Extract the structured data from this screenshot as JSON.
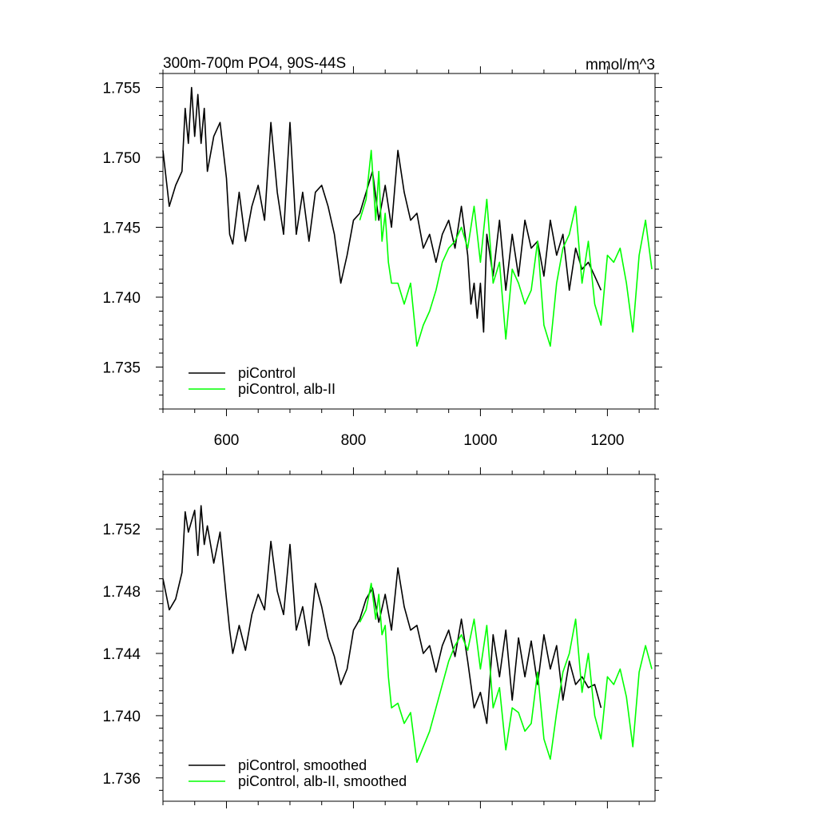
{
  "figure": {
    "left_title": "300m-700m PO4, 90S-44S",
    "right_title": "mmol/m^3"
  },
  "colors": {
    "piControl": "#000000",
    "alb_II": "#00ff00",
    "axis": "#000000"
  },
  "chart_data": [
    {
      "type": "line",
      "title": "300m-700m PO4, 90S-44S",
      "units": "mmol/m^3",
      "xlim": [
        500,
        1275
      ],
      "ylim": [
        1.732,
        1.756
      ],
      "xticks": [
        600,
        800,
        1000,
        1200
      ],
      "xtick_labels": [
        "600",
        "800",
        "1000",
        "1200"
      ],
      "yticks": [
        1.735,
        1.74,
        1.745,
        1.75,
        1.755
      ],
      "ytick_labels": [
        "1.735",
        "1.740",
        "1.745",
        "1.750",
        "1.755"
      ],
      "legend_position": "bottom-left",
      "series": [
        {
          "name": "piControl",
          "color": "#000000",
          "x": [
            500,
            510,
            520,
            530,
            535,
            540,
            545,
            550,
            555,
            560,
            565,
            570,
            580,
            590,
            600,
            605,
            610,
            620,
            630,
            640,
            650,
            660,
            670,
            680,
            690,
            700,
            710,
            720,
            730,
            740,
            750,
            760,
            770,
            780,
            790,
            800,
            810,
            820,
            830,
            840,
            850,
            860,
            870,
            880,
            890,
            900,
            910,
            920,
            930,
            940,
            950,
            960,
            970,
            980,
            985,
            990,
            995,
            1000,
            1005,
            1010,
            1020,
            1030,
            1040,
            1050,
            1060,
            1070,
            1080,
            1090,
            1100,
            1110,
            1120,
            1130,
            1140,
            1150,
            1160,
            1170,
            1180,
            1190
          ],
          "y": [
            1.7505,
            1.7465,
            1.748,
            1.749,
            1.7535,
            1.751,
            1.755,
            1.7515,
            1.7545,
            1.751,
            1.7535,
            1.749,
            1.7515,
            1.7525,
            1.7485,
            1.7445,
            1.7438,
            1.7475,
            1.744,
            1.7465,
            1.748,
            1.7455,
            1.7525,
            1.7475,
            1.7445,
            1.7525,
            1.7445,
            1.7475,
            1.744,
            1.7475,
            1.748,
            1.7465,
            1.7445,
            1.741,
            1.743,
            1.7455,
            1.746,
            1.7475,
            1.749,
            1.7455,
            1.748,
            1.745,
            1.7505,
            1.7475,
            1.7455,
            1.746,
            1.7435,
            1.7445,
            1.7425,
            1.7445,
            1.7455,
            1.7435,
            1.7465,
            1.743,
            1.7395,
            1.741,
            1.7385,
            1.741,
            1.7375,
            1.7445,
            1.7415,
            1.7455,
            1.7405,
            1.7445,
            1.7415,
            1.7455,
            1.7435,
            1.744,
            1.7415,
            1.7455,
            1.743,
            1.7445,
            1.7405,
            1.7435,
            1.742,
            1.7425,
            1.7415,
            1.7405
          ]
        },
        {
          "name": "piControl, alb-II",
          "color": "#00ff00",
          "x": [
            810,
            820,
            828,
            835,
            840,
            845,
            850,
            855,
            860,
            870,
            880,
            890,
            900,
            910,
            920,
            930,
            940,
            950,
            960,
            970,
            980,
            990,
            1000,
            1010,
            1020,
            1030,
            1040,
            1050,
            1060,
            1070,
            1080,
            1090,
            1100,
            1110,
            1120,
            1130,
            1140,
            1150,
            1160,
            1170,
            1180,
            1190,
            1200,
            1210,
            1220,
            1230,
            1240,
            1250,
            1260,
            1270
          ],
          "y": [
            1.7455,
            1.747,
            1.7505,
            1.7455,
            1.749,
            1.744,
            1.746,
            1.7425,
            1.741,
            1.741,
            1.7395,
            1.741,
            1.7365,
            1.738,
            1.739,
            1.7405,
            1.7425,
            1.7435,
            1.744,
            1.745,
            1.7435,
            1.7465,
            1.7425,
            1.747,
            1.741,
            1.7425,
            1.737,
            1.742,
            1.741,
            1.7395,
            1.7405,
            1.744,
            1.738,
            1.7365,
            1.741,
            1.7435,
            1.7445,
            1.7465,
            1.741,
            1.744,
            1.7395,
            1.738,
            1.743,
            1.7425,
            1.7435,
            1.741,
            1.7375,
            1.743,
            1.7455,
            1.742
          ]
        }
      ]
    },
    {
      "type": "line",
      "xlim": [
        500,
        1275
      ],
      "ylim": [
        1.7345,
        1.7555
      ],
      "xticks": [
        600,
        800,
        1000,
        1200
      ],
      "yticks": [
        1.736,
        1.74,
        1.744,
        1.748,
        1.752
      ],
      "ytick_labels": [
        "1.736",
        "1.740",
        "1.744",
        "1.748",
        "1.752"
      ],
      "legend_position": "bottom-left",
      "series": [
        {
          "name": "piControl, smoothed",
          "color": "#000000",
          "x": [
            500,
            510,
            520,
            530,
            535,
            540,
            550,
            555,
            560,
            565,
            570,
            580,
            590,
            600,
            605,
            610,
            620,
            630,
            640,
            650,
            660,
            670,
            680,
            690,
            700,
            710,
            720,
            730,
            740,
            750,
            760,
            770,
            780,
            790,
            800,
            810,
            820,
            830,
            840,
            850,
            860,
            870,
            880,
            890,
            900,
            910,
            920,
            930,
            940,
            950,
            960,
            970,
            980,
            990,
            1000,
            1010,
            1020,
            1030,
            1040,
            1050,
            1060,
            1070,
            1080,
            1090,
            1100,
            1110,
            1120,
            1130,
            1140,
            1150,
            1160,
            1170,
            1180,
            1190
          ],
          "y": [
            1.7488,
            1.7468,
            1.7475,
            1.7492,
            1.7531,
            1.7518,
            1.7532,
            1.7503,
            1.7535,
            1.751,
            1.7522,
            1.7498,
            1.7518,
            1.7475,
            1.7455,
            1.744,
            1.7458,
            1.7442,
            1.7465,
            1.7478,
            1.7468,
            1.7512,
            1.748,
            1.7465,
            1.751,
            1.7455,
            1.747,
            1.7445,
            1.7485,
            1.747,
            1.745,
            1.7438,
            1.742,
            1.743,
            1.7455,
            1.7462,
            1.7475,
            1.7482,
            1.746,
            1.7478,
            1.7455,
            1.7495,
            1.747,
            1.7455,
            1.7458,
            1.744,
            1.7445,
            1.7428,
            1.7445,
            1.7455,
            1.7438,
            1.7462,
            1.7435,
            1.7405,
            1.7415,
            1.7395,
            1.7452,
            1.7425,
            1.7455,
            1.741,
            1.745,
            1.7425,
            1.7448,
            1.742,
            1.7452,
            1.743,
            1.7445,
            1.741,
            1.7435,
            1.742,
            1.7425,
            1.7418,
            1.742,
            1.7405
          ]
        },
        {
          "name": "piControl, alb-II, smoothed",
          "color": "#00ff00",
          "x": [
            810,
            820,
            828,
            835,
            840,
            845,
            850,
            855,
            860,
            870,
            880,
            890,
            900,
            910,
            920,
            930,
            940,
            950,
            960,
            970,
            980,
            990,
            1000,
            1010,
            1020,
            1030,
            1040,
            1050,
            1060,
            1070,
            1080,
            1090,
            1100,
            1110,
            1120,
            1130,
            1140,
            1150,
            1160,
            1170,
            1180,
            1190,
            1200,
            1210,
            1220,
            1230,
            1240,
            1250,
            1260,
            1270
          ],
          "y": [
            1.746,
            1.7468,
            1.7485,
            1.7462,
            1.7478,
            1.7452,
            1.7458,
            1.7425,
            1.7405,
            1.7408,
            1.7395,
            1.7402,
            1.737,
            1.738,
            1.739,
            1.7405,
            1.742,
            1.7435,
            1.7445,
            1.7452,
            1.7442,
            1.7462,
            1.743,
            1.7458,
            1.7405,
            1.7418,
            1.7378,
            1.7405,
            1.7402,
            1.739,
            1.7395,
            1.7428,
            1.7385,
            1.7372,
            1.7402,
            1.7428,
            1.744,
            1.7462,
            1.7415,
            1.744,
            1.74,
            1.7385,
            1.7425,
            1.742,
            1.743,
            1.7412,
            1.738,
            1.7428,
            1.7445,
            1.743
          ]
        }
      ]
    }
  ]
}
